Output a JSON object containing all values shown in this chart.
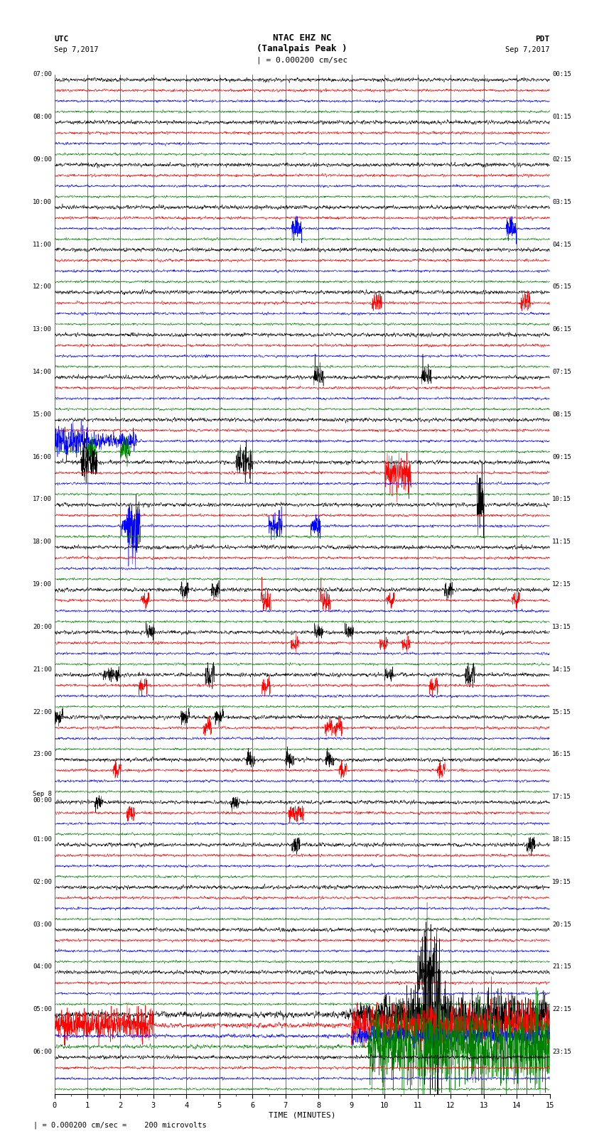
{
  "title_line1": "NTAC EHZ NC",
  "title_line2": "(Tanalpais Peak )",
  "title_scale": "| = 0.000200 cm/sec",
  "left_label_line1": "UTC",
  "left_label_line2": "Sep 7,2017",
  "right_label_line1": "PDT",
  "right_label_line2": "Sep 7,2017",
  "bottom_label": "TIME (MINUTES)",
  "bottom_note": "= 0.000200 cm/sec =    200 microvolts",
  "xlabel_ticks": [
    0,
    1,
    2,
    3,
    4,
    5,
    6,
    7,
    8,
    9,
    10,
    11,
    12,
    13,
    14,
    15
  ],
  "utc_labels": [
    "07:00",
    "08:00",
    "09:00",
    "10:00",
    "11:00",
    "12:00",
    "13:00",
    "14:00",
    "15:00",
    "16:00",
    "17:00",
    "18:00",
    "19:00",
    "20:00",
    "21:00",
    "22:00",
    "23:00",
    "Sep 8\n00:00",
    "01:00",
    "02:00",
    "03:00",
    "04:00",
    "05:00",
    "06:00"
  ],
  "pdt_labels": [
    "00:15",
    "01:15",
    "02:15",
    "03:15",
    "04:15",
    "05:15",
    "06:15",
    "07:15",
    "08:15",
    "09:15",
    "10:15",
    "11:15",
    "12:15",
    "13:15",
    "14:15",
    "15:15",
    "16:15",
    "17:15",
    "18:15",
    "19:15",
    "20:15",
    "21:15",
    "22:15",
    "23:15"
  ],
  "colors": [
    "black",
    "red",
    "blue",
    "green"
  ],
  "background_color": "white",
  "n_rows": 96,
  "n_points": 3000,
  "noise_base": 0.25
}
